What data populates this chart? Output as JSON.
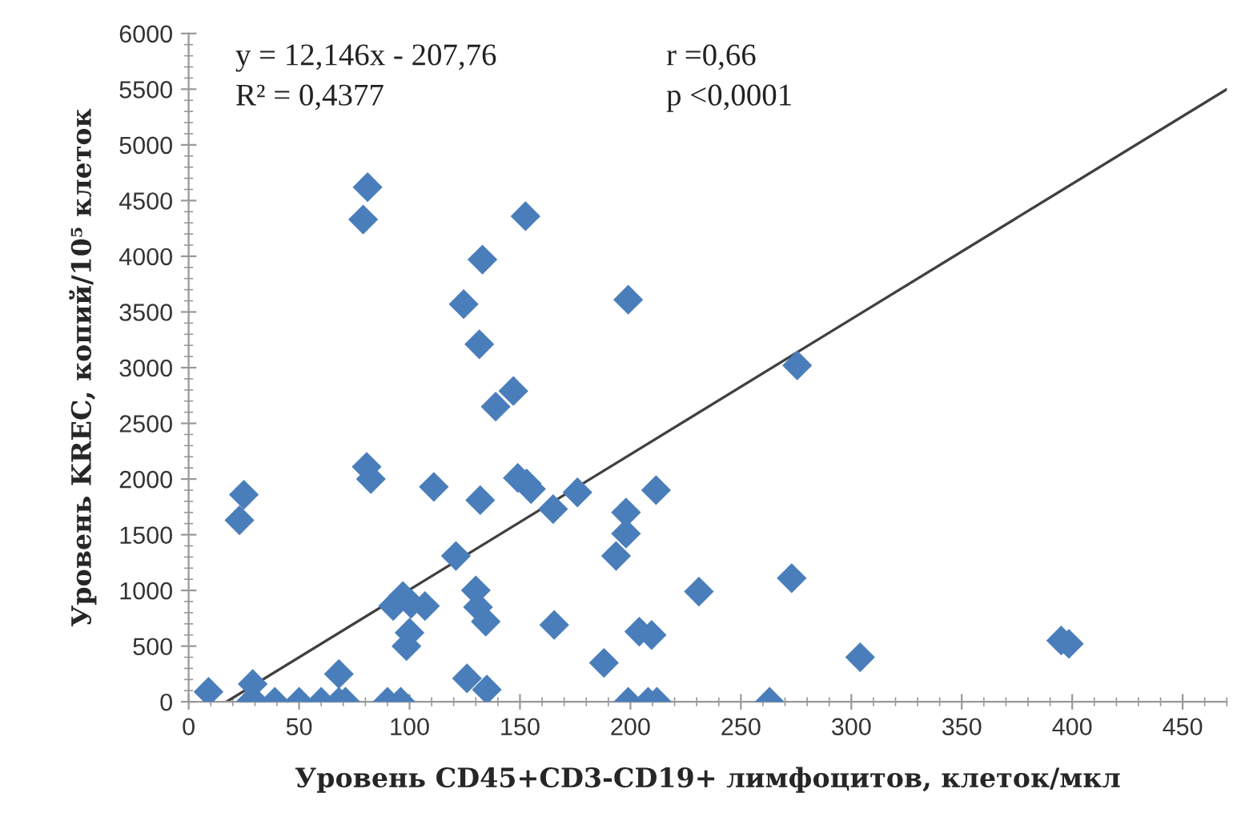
{
  "chart_data": {
    "type": "scatter",
    "xlabel": "Уровень CD45+CD3-CD19+ лимфоцитов, клеток/мкл",
    "ylabel": "Уровень KREC, копий/10⁵ клеток",
    "annotations": [
      "y = 12,146x - 207,76",
      "R² = 0,4377",
      "r =0,66",
      "p <0,0001"
    ],
    "xlim": [
      0,
      470
    ],
    "ylim": [
      0,
      6000
    ],
    "xticks": [
      0,
      50,
      100,
      150,
      200,
      250,
      300,
      350,
      400,
      450
    ],
    "yticks": [
      0,
      500,
      1000,
      1500,
      2000,
      2500,
      3000,
      3500,
      4000,
      4500,
      5000,
      5500,
      6000
    ],
    "grid": false,
    "legend": false,
    "marker": "diamond",
    "series": [
      {
        "color": "#4a7ebb",
        "x": [
          9,
          23,
          25,
          29,
          28,
          30,
          39,
          50,
          60,
          68,
          68,
          71,
          80.6,
          82.5,
          90,
          96,
          92.6,
          97,
          100.7,
          100,
          98.6,
          107,
          111,
          121,
          126,
          132,
          130,
          131,
          134.5,
          135,
          139,
          147,
          149,
          153,
          155,
          165.5,
          165,
          176,
          188,
          193.5,
          198,
          198,
          199,
          208,
          212,
          199,
          204,
          209.6,
          211.6,
          231,
          263,
          273,
          275.5,
          304,
          395,
          398.5,
          79,
          81,
          152.5,
          133,
          124.5,
          131.6
        ],
        "values": [
          90,
          1630,
          1860,
          160,
          0,
          0,
          0,
          0,
          0,
          250,
          0,
          0,
          2110,
          2000,
          0,
          0,
          860,
          950,
          880,
          620,
          500,
          860,
          1930,
          1310,
          210,
          1810,
          1000,
          850,
          720,
          110,
          2650,
          2790,
          2010,
          1960,
          1910,
          690,
          1730,
          1880,
          350,
          1310,
          1700,
          1510,
          0,
          0,
          0,
          3610,
          630,
          600,
          1900,
          990,
          0,
          1110,
          3020,
          400,
          550,
          520,
          4330,
          4620,
          4360,
          3970,
          3570,
          3210
        ]
      },
      {
        "type": "line",
        "color": "#404040",
        "marker": "none",
        "line_style": "solid",
        "x": [
          17.1,
          470
        ],
        "values": [
          0,
          5500
        ]
      }
    ]
  }
}
